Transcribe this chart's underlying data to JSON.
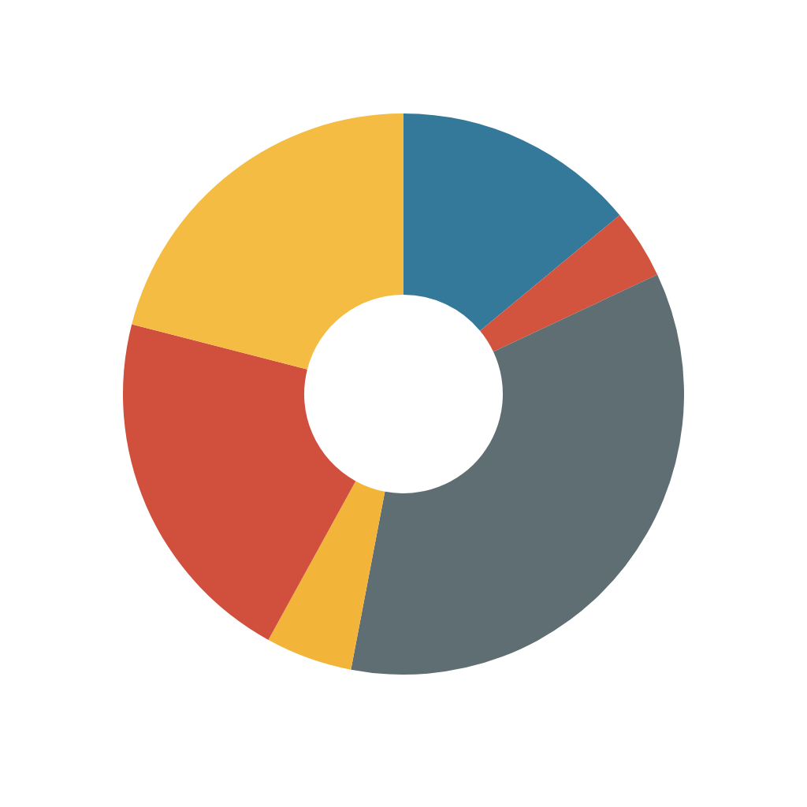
{
  "chart_data": {
    "type": "donut",
    "categories": [
      null,
      null,
      null,
      null,
      null,
      null
    ],
    "values": [
      14,
      4,
      35,
      5,
      21,
      21
    ],
    "colors": [
      "#35799a",
      "#d2543f",
      "#5f6e73",
      "#f2b53a",
      "#d0503d",
      "#f4bc42"
    ]
  }
}
